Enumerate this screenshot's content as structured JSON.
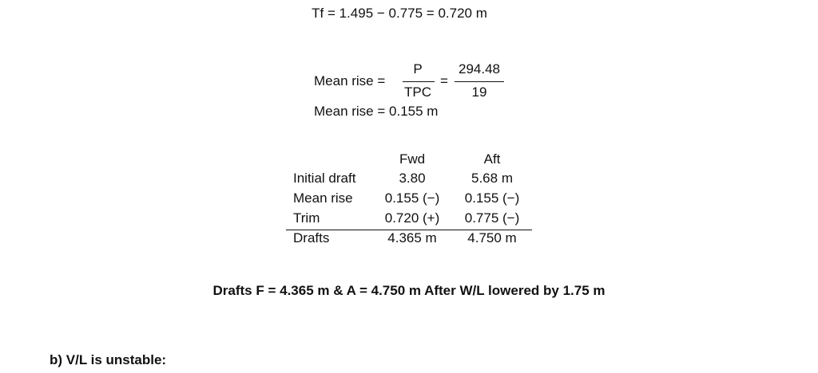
{
  "trim_line": "Tf = 1.495 − 0.775 = 0.720 m",
  "mean_rise_formula": {
    "lhs": "Mean rise =",
    "fraction1": {
      "numerator": "P",
      "denominator": "TPC"
    },
    "equals": "=",
    "fraction2": {
      "numerator": "294.48",
      "denominator": "19"
    }
  },
  "mean_rise_result": "Mean rise = 0.155 m",
  "table": {
    "header": [
      "Fwd",
      "Aft"
    ],
    "rows": [
      [
        "Initial draft",
        "3.80",
        "5.68 m"
      ],
      [
        "Mean rise",
        "0.155 (−)",
        "0.155 (−)"
      ],
      [
        "Trim",
        "0.720 (+)",
        "0.775 (−)"
      ]
    ],
    "total": [
      "Drafts",
      "4.365 m",
      "4.750 m"
    ]
  },
  "conclusion": "Drafts F = 4.365 m & A = 4.750 m After W/L lowered by 1.75 m",
  "part_b": "b) V/L is unstable:"
}
